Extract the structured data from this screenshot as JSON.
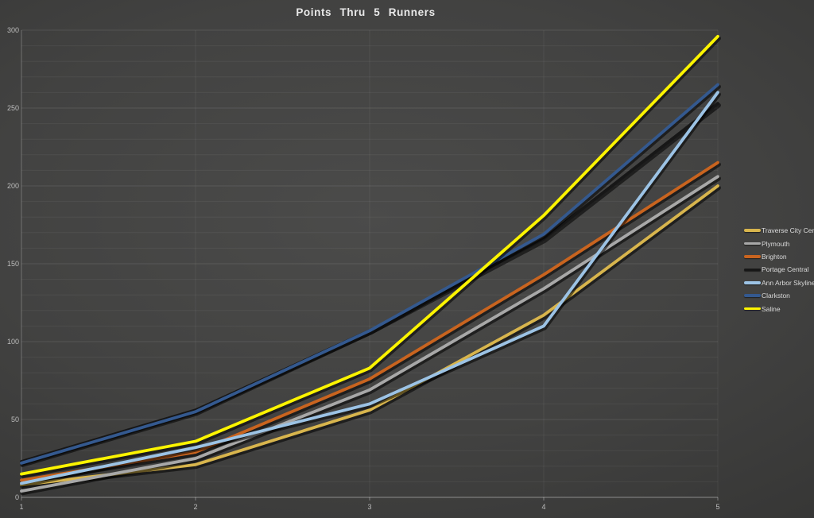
{
  "title": "Points Thru 5 Runners",
  "chart_data": {
    "type": "line",
    "x": [
      1,
      2,
      3,
      4,
      5
    ],
    "x_tick_labels": [
      "1",
      "2",
      "3",
      "4",
      "5"
    ],
    "y_major_ticks": [
      0,
      50,
      100,
      150,
      200,
      250,
      300
    ],
    "ylim": [
      0,
      300
    ],
    "xlabel": "",
    "ylabel": "",
    "grid": {
      "horizontal_minor_step": 10,
      "horizontal_major_step": 50,
      "vertical_gridlines": true
    },
    "legend_position": "right",
    "series": [
      {
        "name": "Traverse City Central",
        "color": "#D8B54D",
        "values": [
          8,
          21,
          56,
          117,
          200
        ]
      },
      {
        "name": "Plymouth",
        "color": "#A8A8A8",
        "values": [
          4,
          25,
          69,
          134,
          206
        ]
      },
      {
        "name": "Brighton",
        "color": "#C9641F",
        "values": [
          11,
          29,
          76,
          143,
          215
        ]
      },
      {
        "name": "Portage Central",
        "color": "#171717",
        "values": [
          23,
          56,
          107,
          166,
          253
        ]
      },
      {
        "name": "Ann Arbor Skyline",
        "color": "#9CC3E5",
        "values": [
          9,
          32,
          60,
          110,
          260
        ]
      },
      {
        "name": "Clarkston",
        "color": "#34598F",
        "values": [
          22,
          55,
          107,
          169,
          265
        ]
      },
      {
        "name": "Saline",
        "color": "#FCF400",
        "values": [
          15,
          36,
          83,
          181,
          296
        ]
      }
    ],
    "colors": {
      "background_center": "#4b4b4a",
      "background_edge": "#2d2d2c",
      "title_text": "#e9e9e9",
      "tick_text": "#bdbdbd",
      "legend_text": "#d9d9d9"
    }
  }
}
